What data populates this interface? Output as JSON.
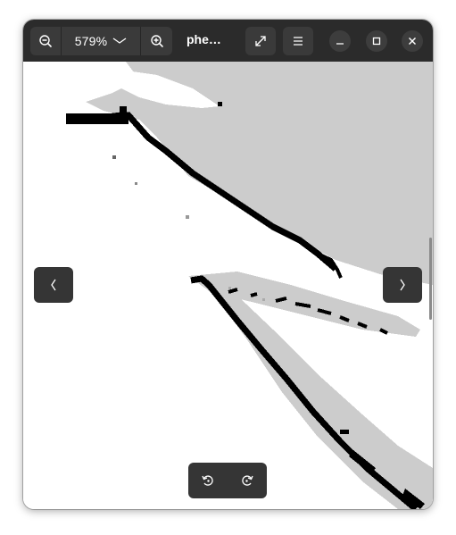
{
  "window": {
    "title": "phe…",
    "zoom": {
      "value": "579%",
      "zoom_out_icon": "zoom-out-icon",
      "zoom_in_icon": "zoom-in-icon",
      "dropdown_icon": "chevron-down-icon"
    },
    "header_buttons": {
      "fullscreen_icon": "fullscreen-icon",
      "menu_icon": "hamburger-menu-icon"
    },
    "window_controls": {
      "minimize_icon": "minimize-icon",
      "maximize_icon": "maximize-icon",
      "close_icon": "close-icon"
    }
  },
  "viewer": {
    "image_description_colors": {
      "foreground": "#000000",
      "gray_region": "#cccccc",
      "background": "#ffffff"
    },
    "prev_icon": "chevron-left-icon",
    "next_icon": "chevron-right-icon",
    "rotate_left_icon": "rotate-left-icon",
    "rotate_right_icon": "rotate-right-icon"
  },
  "colors": {
    "headerbar": "#2b2b2b",
    "button": "#3a3a3a",
    "overlay_button": "#353535",
    "text": "#ffffff"
  }
}
